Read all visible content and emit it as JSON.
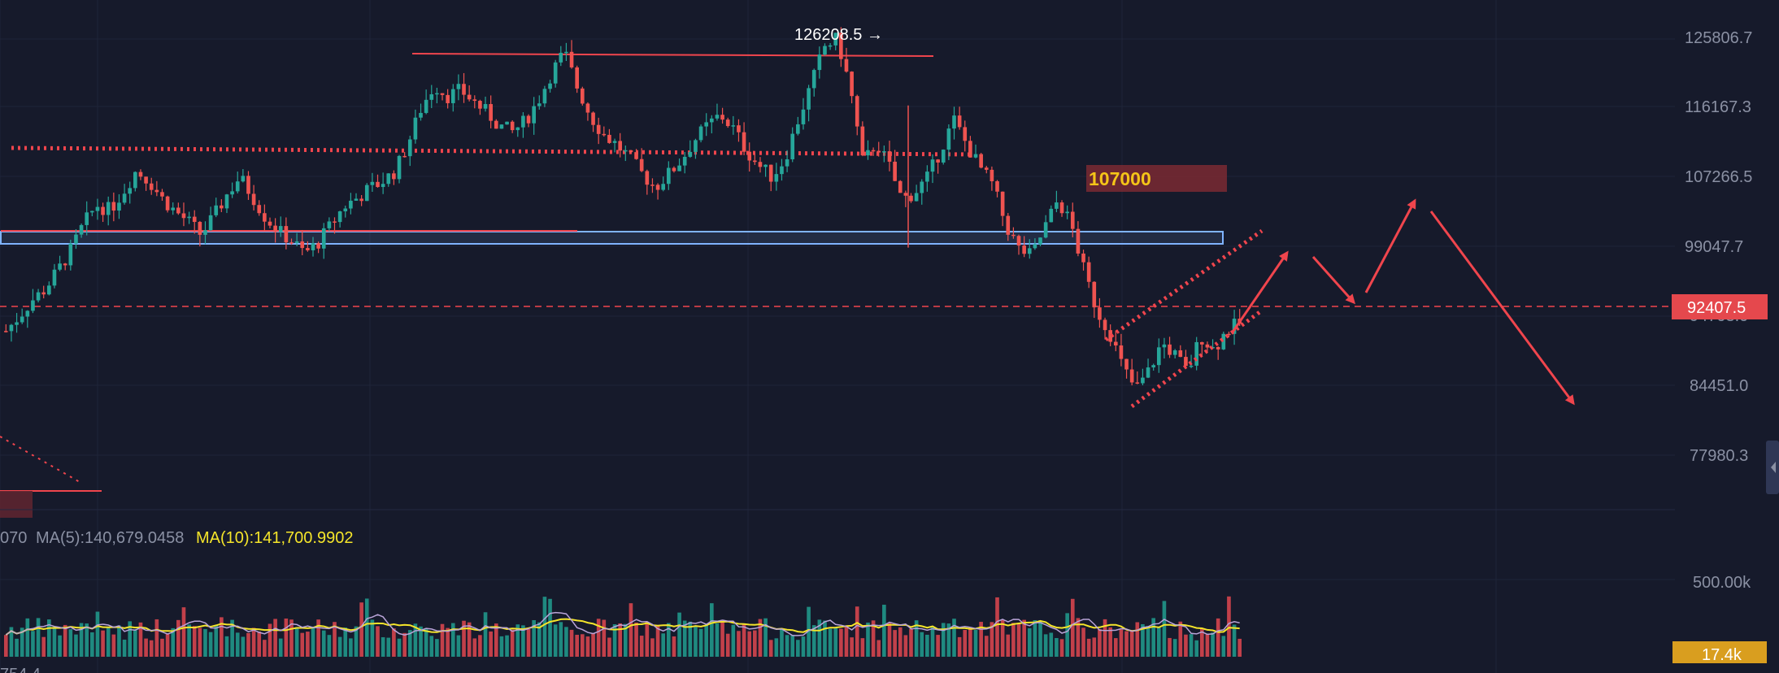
{
  "chart_data": {
    "type": "candlestick",
    "price_axis": {
      "ticks": [
        "125806.7",
        "116167.3",
        "107266.5",
        "99047.7",
        "84451.0",
        "77980.3"
      ],
      "current_price": "92407.5",
      "hidden_tick_fragment": "94703.0",
      "range": [
        73000,
        127500
      ]
    },
    "annotations": {
      "peak_label": "126208.5 →",
      "level_label": "107000",
      "support_zone": [
        99000,
        101200
      ],
      "resistance_line": 110000,
      "peak_line": 125900,
      "dashed_current": 92407.5
    },
    "ohlc_close_path": [
      91500,
      93200,
      95100,
      96400,
      98600,
      101000,
      104100,
      106300,
      105700,
      107800,
      110300,
      109200,
      107100,
      105600,
      104400,
      102800,
      104900,
      107500,
      109600,
      107300,
      104800,
      103200,
      102100,
      100600,
      101800,
      103900,
      106100,
      107100,
      108200,
      109100,
      110300,
      113700,
      117800,
      120400,
      119100,
      119800,
      118500,
      117200,
      115600,
      114900,
      116200,
      118600,
      121800,
      124300,
      120100,
      116800,
      114600,
      113400,
      111900,
      109900,
      108400,
      109900,
      111600,
      113900,
      115600,
      116900,
      115300,
      112700,
      110900,
      109600,
      111800,
      116300,
      120400,
      124900,
      125800,
      120100,
      111100,
      113700,
      110900,
      106900,
      107800,
      109600,
      112900,
      116300,
      113300,
      110700,
      108600,
      103900,
      101100,
      100300,
      103700,
      106900,
      104100,
      98600,
      93900,
      91300,
      87200,
      84600,
      86800,
      90100,
      88700,
      86600,
      90900,
      89300,
      91600,
      92400
    ],
    "volume": {
      "ma5_label": "MA(5):140,679.0458",
      "ma10_label": "MA(10):141,700.9902",
      "left_fragment": "070",
      "axis_tick": "500.00k",
      "current_volume": "17.4k",
      "bottom_fragment": "754.4"
    },
    "colors": {
      "up": "#26a69a",
      "down": "#ef5350",
      "background": "#161a2b",
      "annotation": "#f0454d",
      "level_text": "#f5c518",
      "ma10": "#f5e52a",
      "ma5": "#8a90a3",
      "zone": "#7fb3ff"
    }
  }
}
